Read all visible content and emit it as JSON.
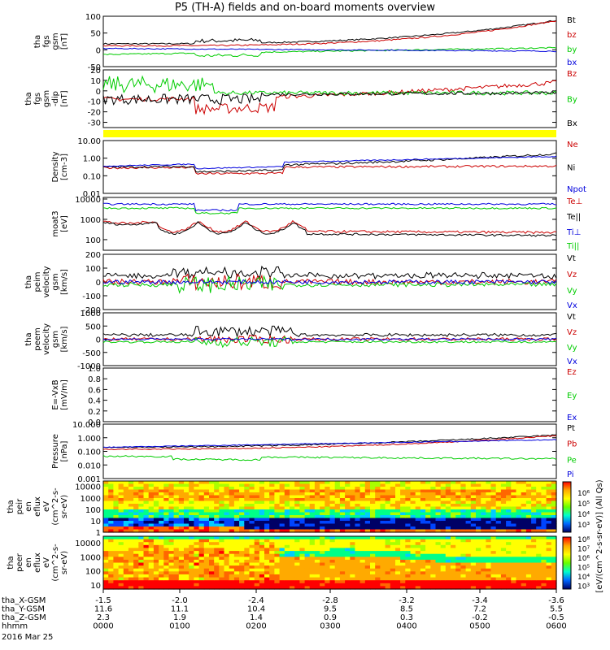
{
  "title": "P5 (TH-A) fields and on-board moments overview",
  "date_label": "2016 Mar 25",
  "chart_data": {
    "type": "line",
    "panels": [
      {
        "ylabel": [
          "tha",
          "fgs",
          "gsm",
          "[nT]"
        ],
        "yticks": [
          "100",
          "50",
          "0",
          "-50"
        ],
        "ylim": [
          -50,
          100
        ],
        "series": [
          {
            "name": "Bt",
            "color": "#000000"
          },
          {
            "name": "bz",
            "color": "#cc0000"
          },
          {
            "name": "by",
            "color": "#00cc00"
          },
          {
            "name": "bx",
            "color": "#0000dd"
          }
        ]
      },
      {
        "ylabel": [
          "tha",
          "fgs",
          "gsm",
          "-dip",
          "[nT]"
        ],
        "yticks": [
          "20",
          "10",
          "0",
          "-10",
          "-20",
          "-30"
        ],
        "ylim": [
          -35,
          20
        ],
        "series": [
          {
            "name": "Bz",
            "color": "#cc0000"
          },
          {
            "name": "By",
            "color": "#00cc00"
          },
          {
            "name": "Bx",
            "color": "#000000"
          }
        ]
      },
      {
        "ylabel": [
          "Density",
          "[cm-3]"
        ],
        "yticks": [
          "10.00",
          "1.00",
          "0.10",
          "0.01"
        ],
        "ylim": [
          0.01,
          10
        ],
        "log": true,
        "series": [
          {
            "name": "Ne",
            "color": "#cc0000"
          },
          {
            "name": "Ni",
            "color": "#000000"
          },
          {
            "name": "Npot",
            "color": "#0000dd"
          }
        ]
      },
      {
        "ylabel": [
          "moat3",
          "[eV]"
        ],
        "yticks": [
          "10000",
          "1000",
          "100"
        ],
        "ylim": [
          30,
          12000
        ],
        "log": true,
        "series": [
          {
            "name": "Te⊥",
            "color": "#cc0000"
          },
          {
            "name": "Te||",
            "color": "#000000"
          },
          {
            "name": "Ti⊥",
            "color": "#0000dd"
          },
          {
            "name": "Ti||",
            "color": "#00cc00"
          }
        ]
      },
      {
        "ylabel": [
          "tha",
          "peim",
          "velocity",
          "gsm",
          "[km/s]"
        ],
        "yticks": [
          "200",
          "100",
          "0",
          "-100",
          "-200"
        ],
        "ylim": [
          -200,
          200
        ],
        "series": [
          {
            "name": "Vt",
            "color": "#000000"
          },
          {
            "name": "Vz",
            "color": "#cc0000"
          },
          {
            "name": "Vy",
            "color": "#00cc00"
          },
          {
            "name": "Vx",
            "color": "#0000dd"
          }
        ]
      },
      {
        "ylabel": [
          "tha",
          "peem",
          "velocity",
          "gsm",
          "[km/s]"
        ],
        "yticks": [
          "1000",
          "500",
          "0",
          "-500",
          "-1000"
        ],
        "ylim": [
          -1000,
          1000
        ],
        "series": [
          {
            "name": "Vt",
            "color": "#000000"
          },
          {
            "name": "Vz",
            "color": "#cc0000"
          },
          {
            "name": "Vy",
            "color": "#00cc00"
          },
          {
            "name": "Vx",
            "color": "#0000dd"
          }
        ]
      },
      {
        "ylabel": [
          "E=-VxB",
          "[mV/m]"
        ],
        "yticks": [
          "1.0",
          "0.8",
          "0.6",
          "0.4",
          "0.2",
          "0.0"
        ],
        "ylim": [
          0,
          1
        ],
        "series": [
          {
            "name": "Ez",
            "color": "#cc0000"
          },
          {
            "name": "Ey",
            "color": "#00cc00"
          },
          {
            "name": "Ex",
            "color": "#0000dd"
          }
        ]
      },
      {
        "ylabel": [
          "Pressure",
          "[nPa]"
        ],
        "yticks": [
          "10.000",
          "1.000",
          "0.100",
          "0.010",
          "0.001"
        ],
        "ylim": [
          0.001,
          10
        ],
        "log": true,
        "series": [
          {
            "name": "Pt",
            "color": "#000000"
          },
          {
            "name": "Pb",
            "color": "#cc0000"
          },
          {
            "name": "Pe",
            "color": "#00cc00"
          },
          {
            "name": "Pi",
            "color": "#0000dd"
          }
        ]
      },
      {
        "type": "heatmap",
        "ylabel": [
          "tha",
          "peir",
          "en",
          "eflux",
          "eV",
          "(cm^2-s-",
          "sr-eV)"
        ],
        "yticks": [
          "10000",
          "1000",
          "100",
          "10",
          "1"
        ],
        "ylim": [
          1,
          30000
        ],
        "log": true
      },
      {
        "type": "heatmap",
        "ylabel": [
          "tha",
          "peer",
          "en",
          "eflux",
          "eV",
          "(cm^2-s-",
          "sr-eV)"
        ],
        "yticks": [
          "10000",
          "1000",
          "100",
          "10"
        ],
        "ylim": [
          5,
          30000
        ],
        "log": true
      }
    ],
    "colorbar": {
      "label": "[eV/(cm^2-s-sr-eV)] (All Qs)",
      "ticks": [
        "10^6",
        "10^5",
        "10^4",
        "10^3"
      ]
    },
    "colorbar2": {
      "ticks": [
        "10^8",
        "10^7",
        "10^6",
        "10^5",
        "10^4",
        "10^3"
      ]
    },
    "x_rows": [
      {
        "label": "tha_X-GSM",
        "values": [
          "-1.5",
          "-2.0",
          "-2.4",
          "-2.8",
          "-3.2",
          "-3.4",
          "-3.6"
        ]
      },
      {
        "label": "tha_Y-GSM",
        "values": [
          "11.6",
          "11.1",
          "10.4",
          "9.5",
          "8.5",
          "7.2",
          "5.5"
        ]
      },
      {
        "label": "tha_Z-GSM",
        "values": [
          "2.3",
          "1.9",
          "1.4",
          "0.9",
          "0.3",
          "-0.2",
          "-0.5"
        ]
      },
      {
        "label": "hhmm",
        "values": [
          "0000",
          "0100",
          "0200",
          "0300",
          "0400",
          "0500",
          "0600"
        ]
      }
    ],
    "colors": {
      "black": "#000000",
      "red": "#cc0000",
      "green": "#00cc00",
      "blue": "#0000dd",
      "yellow": "#ffff00"
    }
  }
}
